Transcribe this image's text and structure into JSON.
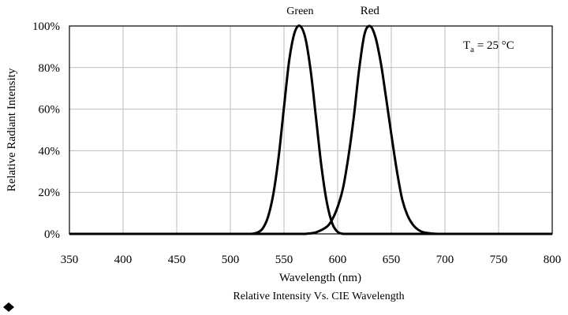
{
  "chart_data": {
    "type": "line",
    "title": "",
    "caption": "Relative Intensity Vs. CIE Wavelength",
    "xlabel": "Wavelength (nm)",
    "ylabel": "Relative Radiant Intensity",
    "xlim": [
      350,
      800
    ],
    "ylim": [
      0,
      100
    ],
    "x_ticks": [
      350,
      400,
      450,
      500,
      550,
      600,
      650,
      700,
      750,
      800
    ],
    "x_tick_labels": [
      "350",
      "400",
      "450",
      "500",
      "550",
      "600",
      "650",
      "700",
      "750",
      "800"
    ],
    "y_ticks": [
      0,
      20,
      40,
      60,
      80,
      100
    ],
    "y_tick_labels": [
      "0%",
      "20%",
      "40%",
      "60%",
      "80%",
      "100%"
    ],
    "grid": true,
    "legend": "none",
    "annotation": {
      "base": "T",
      "sub": "a",
      "rest": " = 25 °C"
    },
    "series": [
      {
        "name": "Green",
        "color": "#000000",
        "x": [
          520,
          525,
          530,
          535,
          540,
          545,
          550,
          555,
          560,
          565,
          570,
          575,
          580,
          585,
          590,
          595,
          600,
          605
        ],
        "y": [
          0,
          0.6,
          2.5,
          8,
          19,
          37,
          61,
          84,
          97,
          100,
          94,
          78,
          55,
          32,
          15,
          5,
          1,
          0
        ]
      },
      {
        "name": "Red",
        "color": "#000000",
        "x": [
          570,
          580,
          590,
          595,
          600,
          605,
          610,
          615,
          620,
          625,
          630,
          635,
          640,
          645,
          650,
          655,
          660,
          665,
          670,
          675,
          680,
          690,
          700
        ],
        "y": [
          0,
          0.8,
          3.5,
          7,
          13,
          22,
          37,
          56,
          79,
          96,
          100,
          95,
          83,
          66,
          48,
          31,
          17,
          9,
          4.5,
          2,
          0.8,
          0.1,
          0
        ]
      }
    ]
  }
}
